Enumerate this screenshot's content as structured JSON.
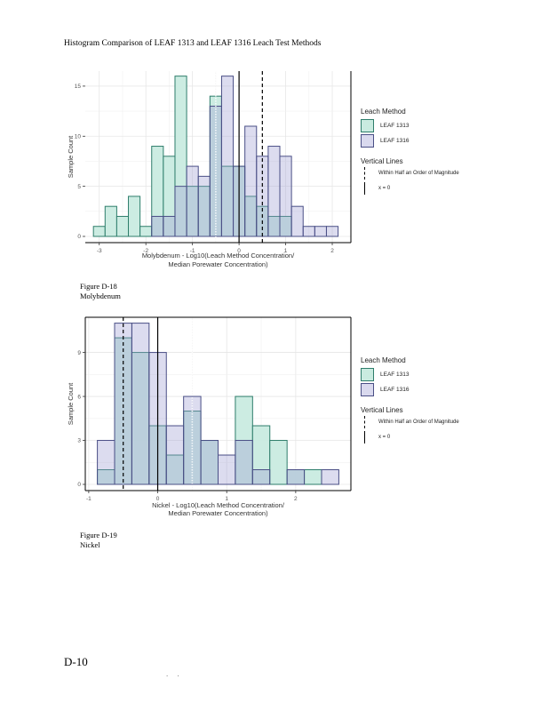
{
  "document": {
    "title": "Histogram Comparison of LEAF 1313 and LEAF 1316 Leach Test Methods",
    "page_number": "D-10",
    "footer_dots": ". ."
  },
  "colors": {
    "leaf1313_fill": "#c9ebe0",
    "leaf1313_stroke": "#2e7d6b",
    "leaf1316_fill": "#d9d9ee",
    "leaf1316_stroke": "#4a4f86",
    "overlap_fill": "#b7cdd4"
  },
  "chart_data": [
    {
      "type": "bar",
      "subtype": "histogram-overlay",
      "figure_label": "Figure D-18",
      "figure_name": "Molybdenum",
      "xlabel_line1": "Molybdenum - Log10(Leach Method Concentration/",
      "xlabel_line2": "Median Porewater Concentration)",
      "ylabel": "Sample Count",
      "xlim": [
        -3.3,
        2.4
      ],
      "ylim": [
        0,
        16.5
      ],
      "xticks": [
        -3,
        -2,
        -1,
        0,
        1,
        2
      ],
      "xtick_labels": [
        "-3",
        "-2",
        "-1",
        "0",
        "1",
        "2"
      ],
      "yticks": [
        0,
        5,
        10,
        15
      ],
      "ytick_labels": [
        "0",
        "5",
        "10",
        "15"
      ],
      "bin_width": 0.25,
      "bin_starts": [
        -3.125,
        -2.875,
        -2.625,
        -2.375,
        -2.125,
        -1.875,
        -1.625,
        -1.375,
        -1.125,
        -0.875,
        -0.625,
        -0.375,
        -0.125,
        0.125,
        0.375,
        0.625,
        0.875,
        1.125,
        1.375,
        1.625,
        1.875
      ],
      "series": [
        {
          "name": "LEAF 1313",
          "values": [
            1,
            3,
            2,
            4,
            1,
            9,
            8,
            16,
            5,
            5,
            14,
            7,
            7,
            4,
            3,
            2,
            2,
            0,
            0,
            0,
            0
          ]
        },
        {
          "name": "LEAF 1316",
          "values": [
            0,
            0,
            0,
            0,
            0,
            2,
            2,
            5,
            7,
            6,
            13,
            16,
            7,
            11,
            8,
            9,
            8,
            3,
            1,
            1,
            1
          ]
        }
      ],
      "vlines": [
        {
          "x": 0,
          "style": "solid",
          "label": "x = 0"
        },
        {
          "x": 0.5,
          "style": "dashed",
          "label": "Within Half an Order of Magnitude"
        },
        {
          "x": -0.5,
          "style": "dotted-light",
          "label": ""
        }
      ],
      "grid": true,
      "legend_placement": "right",
      "legend": {
        "title": "Leach Method",
        "entries": [
          "LEAF 1313",
          "LEAF 1316"
        ],
        "lines_title": "Vertical Lines",
        "line_entries": [
          "Within Half an Order of Magnitude",
          "x = 0"
        ]
      }
    },
    {
      "type": "bar",
      "subtype": "histogram-overlay",
      "figure_label": "Figure D-19",
      "figure_name": "Nickel",
      "xlabel_line1": "Nickel - Log10(Leach Method Concentration/",
      "xlabel_line2": "Median Porewater Concentration)",
      "ylabel": "Sample Count",
      "xlim": [
        -1.05,
        2.8
      ],
      "ylim": [
        0,
        11.4
      ],
      "xticks": [
        -1,
        0,
        1,
        2
      ],
      "xtick_labels": [
        "-1",
        "0",
        "1",
        "2"
      ],
      "yticks": [
        0,
        3,
        6,
        9
      ],
      "ytick_labels": [
        "0",
        "3",
        "6",
        "9"
      ],
      "bin_width": 0.25,
      "bin_starts": [
        -0.875,
        -0.625,
        -0.375,
        -0.125,
        0.125,
        0.375,
        0.625,
        0.875,
        1.125,
        1.375,
        1.625,
        1.875,
        2.125,
        2.375
      ],
      "series": [
        {
          "name": "LEAF 1313",
          "values": [
            1,
            10,
            9,
            4,
            2,
            5,
            3,
            0,
            6,
            4,
            3,
            1,
            1,
            0
          ]
        },
        {
          "name": "LEAF 1316",
          "values": [
            3,
            11,
            11,
            9,
            4,
            6,
            3,
            2,
            3,
            1,
            0,
            1,
            0,
            1
          ]
        }
      ],
      "vlines": [
        {
          "x": 0,
          "style": "solid",
          "label": "x = 0"
        },
        {
          "x": -0.5,
          "style": "dashed",
          "label": "Within Half an Order of Magnitude"
        },
        {
          "x": 0.5,
          "style": "dotted-light",
          "label": ""
        }
      ],
      "grid": true,
      "legend_placement": "right",
      "legend": {
        "title": "Leach Method",
        "entries": [
          "LEAF 1313",
          "LEAF 1316"
        ],
        "lines_title": "Vertical Lines",
        "line_entries": [
          "Within Half an Order of Magnitude",
          "x = 0"
        ]
      }
    }
  ]
}
